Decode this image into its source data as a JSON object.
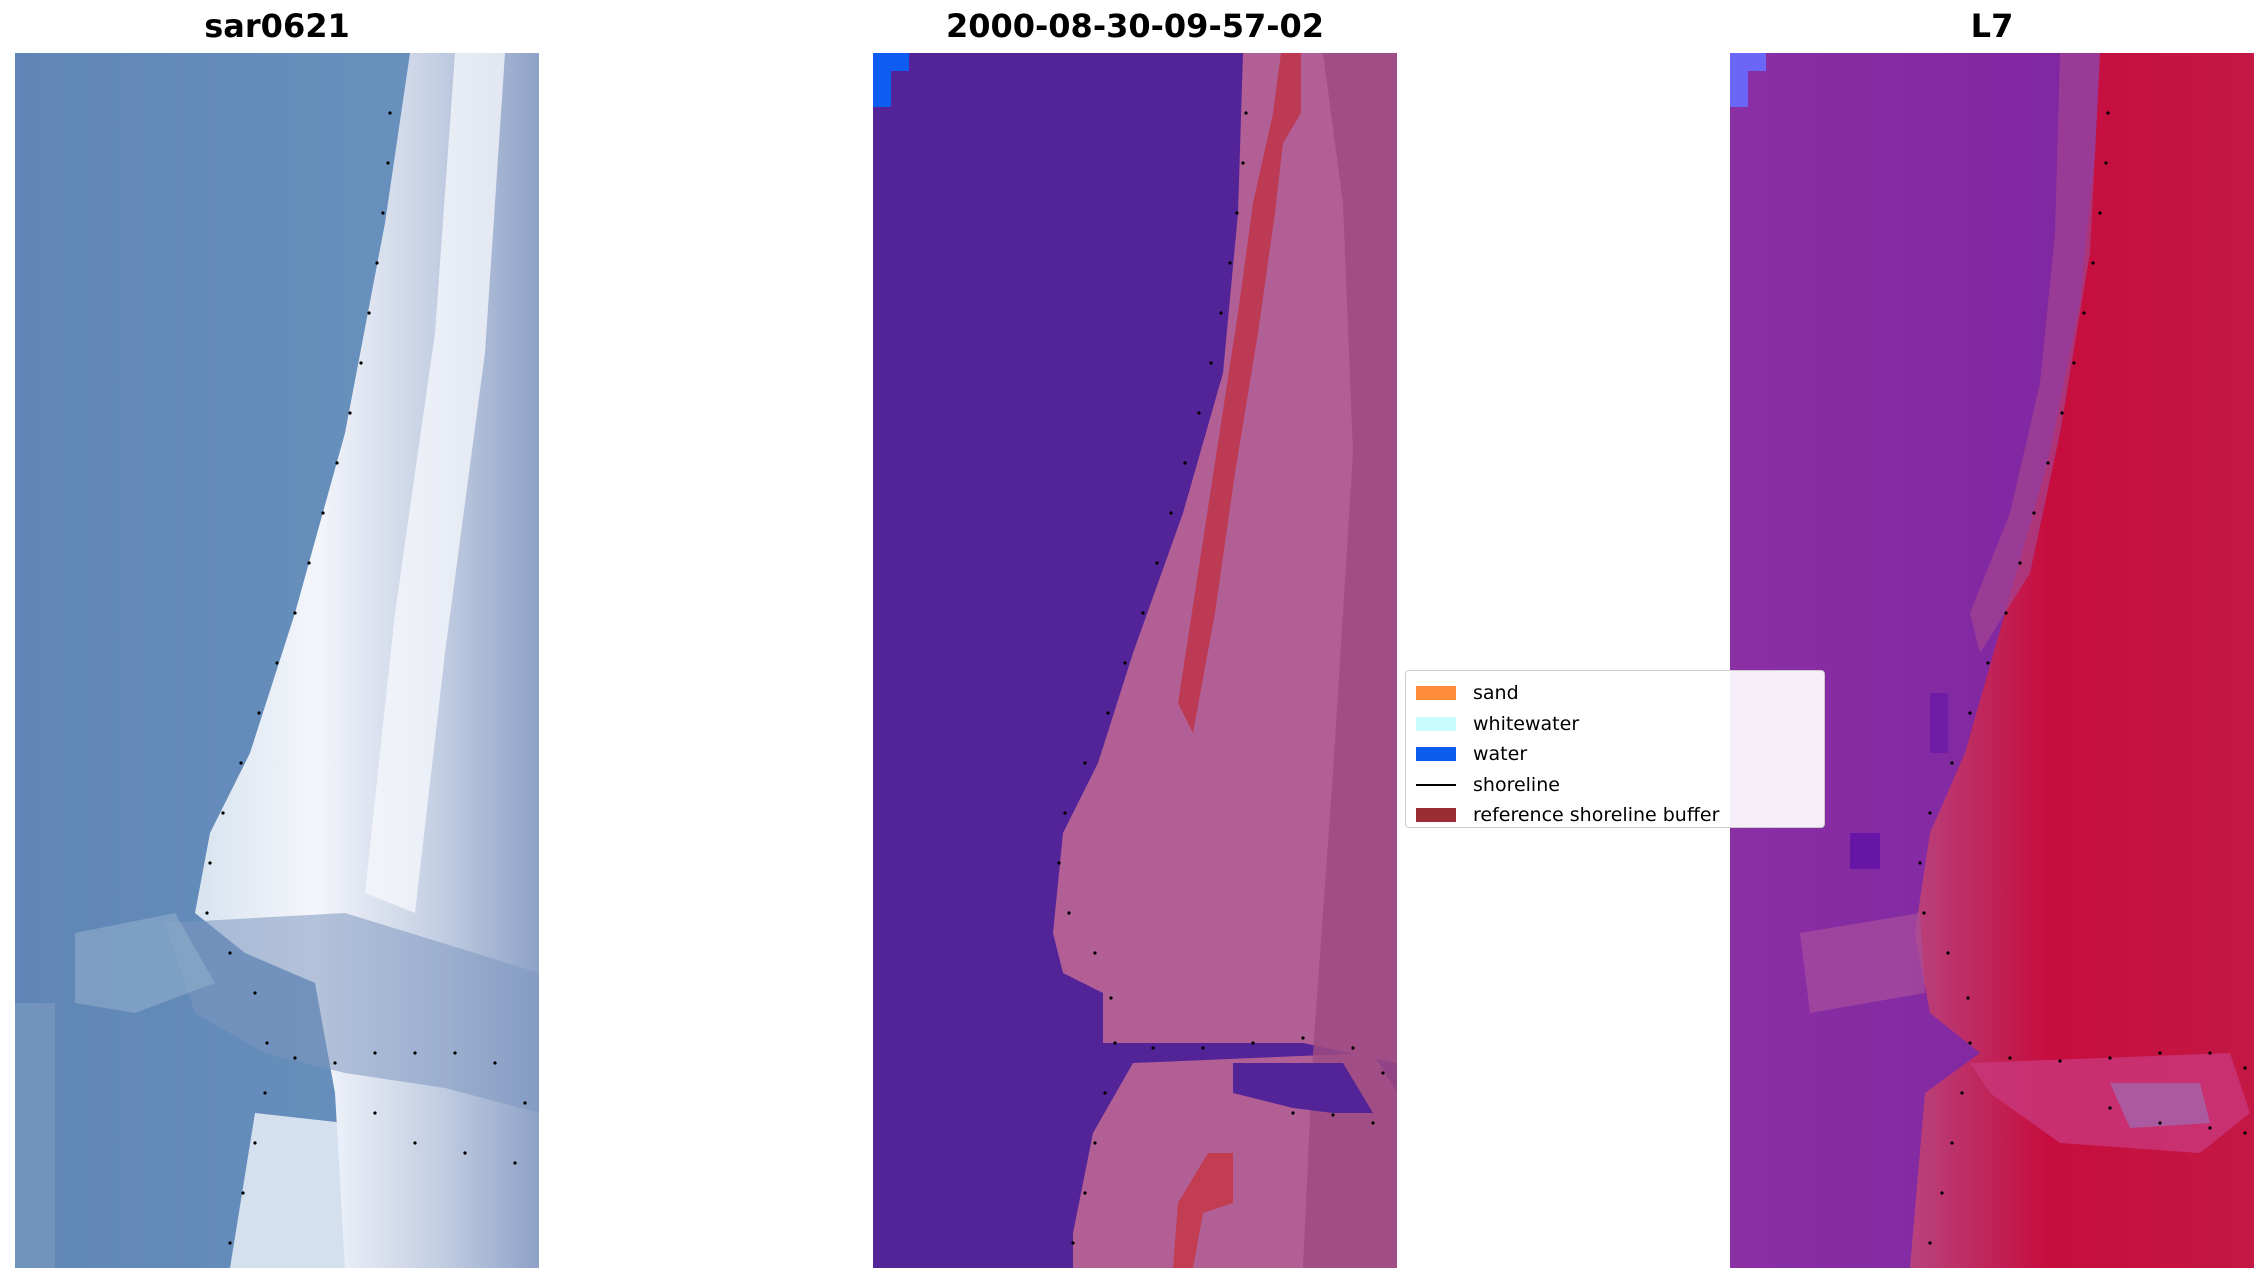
{
  "panels": [
    {
      "title": "sar0621",
      "kind": "rgb-image"
    },
    {
      "title": "2000-08-30-09-57-02",
      "kind": "classified-overlay"
    },
    {
      "title": "L7",
      "kind": "false-color-image"
    }
  ],
  "legend": {
    "items": [
      {
        "label": "sand",
        "color": "#ff8c3a",
        "type": "patch"
      },
      {
        "label": "whitewater",
        "color": "#c7fdff",
        "type": "patch"
      },
      {
        "label": "water",
        "color": "#0b5bef",
        "type": "patch"
      },
      {
        "label": "shoreline",
        "color": "#000000",
        "type": "line"
      },
      {
        "label": "reference shoreline buffer",
        "color": "#9a2c34",
        "type": "patch"
      }
    ]
  }
}
